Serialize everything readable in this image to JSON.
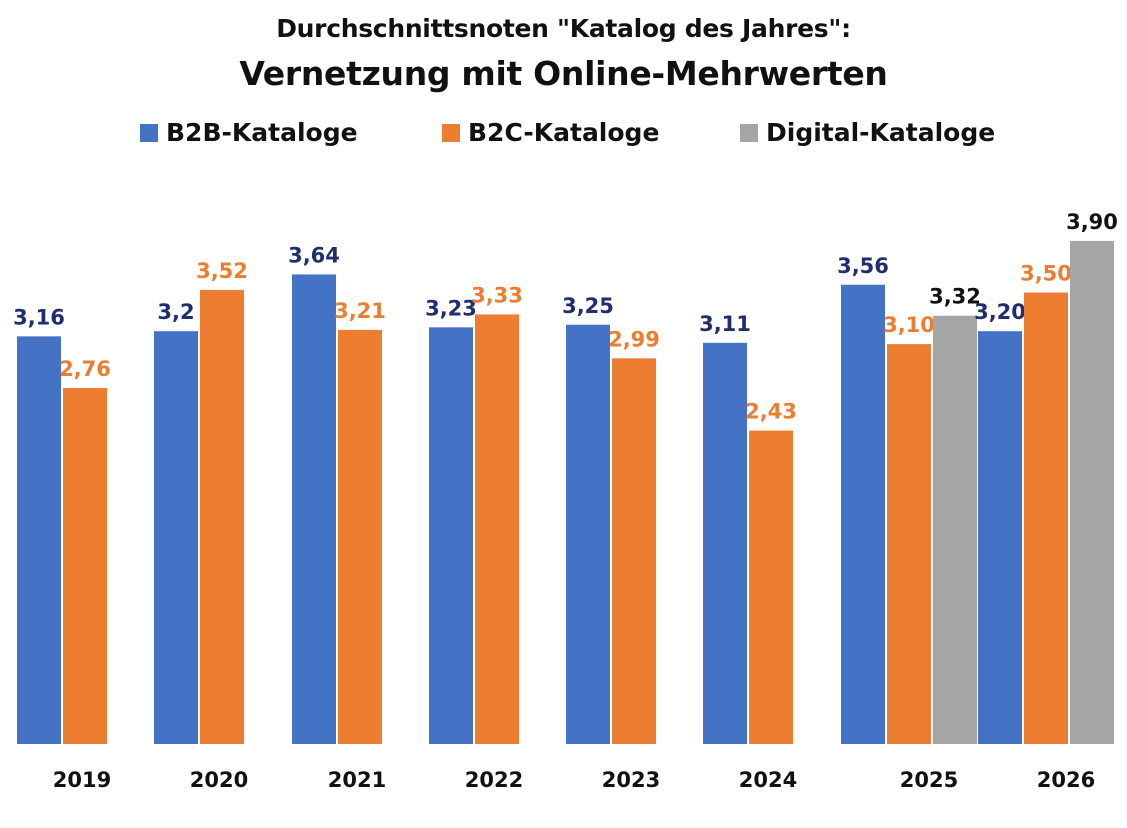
{
  "chart_data": {
    "type": "bar",
    "title": "Vernetzung mit Online-Mehrwerten",
    "subtitle": "Durchschnittsnoten \"Katalog des Jahres\":",
    "legend_position": "top",
    "grid": false,
    "ylim": [
      0,
      4
    ],
    "groups": [
      {
        "category": "2019",
        "bars": [
          {
            "series": "B2B-Kataloge",
            "value": 3.16,
            "label": "3,16"
          },
          {
            "series": "B2C-Kataloge",
            "value": 2.76,
            "label": "2,76"
          }
        ]
      },
      {
        "category": "2020",
        "bars": [
          {
            "series": "B2B-Kataloge",
            "value": 3.2,
            "label": "3,2"
          },
          {
            "series": "B2C-Kataloge",
            "value": 3.52,
            "label": "3,52"
          }
        ]
      },
      {
        "category": "2021",
        "bars": [
          {
            "series": "B2B-Kataloge",
            "value": 3.64,
            "label": "3,64"
          },
          {
            "series": "B2C-Kataloge",
            "value": 3.21,
            "label": "3,21"
          }
        ]
      },
      {
        "category": "2022",
        "bars": [
          {
            "series": "B2B-Kataloge",
            "value": 3.23,
            "label": "3,23"
          },
          {
            "series": "B2C-Kataloge",
            "value": 3.33,
            "label": "3,33"
          }
        ]
      },
      {
        "category": "2023",
        "bars": [
          {
            "series": "B2B-Kataloge",
            "value": 3.25,
            "label": "3,25"
          },
          {
            "series": "B2C-Kataloge",
            "value": 2.99,
            "label": "2,99"
          }
        ]
      },
      {
        "category": "2024",
        "bars": [
          {
            "series": "B2B-Kataloge",
            "value": 3.11,
            "label": "3,11"
          },
          {
            "series": "B2C-Kataloge",
            "value": 2.43,
            "label": "2,43"
          }
        ]
      },
      {
        "category": "2025",
        "bars": [
          {
            "series": "B2B-Kataloge",
            "value": 3.56,
            "label": "3,56"
          },
          {
            "series": "B2C-Kataloge",
            "value": 3.1,
            "label": "3,10"
          },
          {
            "series": "Digital-Kataloge",
            "value": 3.32,
            "label": "3,32"
          }
        ]
      },
      {
        "category": "2026",
        "bars": [
          {
            "series": "B2B-Kataloge",
            "value": 3.2,
            "label": "3,20"
          },
          {
            "series": "B2C-Kataloge",
            "value": 3.5,
            "label": "3,50"
          },
          {
            "series": "Digital-Kataloge",
            "value": 3.9,
            "label": "3,90"
          }
        ]
      }
    ],
    "series": [
      {
        "name": "B2B-Kataloge",
        "color": "#4472C4",
        "label_color": "#1F2E6E"
      },
      {
        "name": "B2C-Kataloge",
        "color": "#ED7D31",
        "label_color": "#ED7D31"
      },
      {
        "name": "Digital-Kataloge",
        "color": "#A5A5A5",
        "label_color": "#111111"
      }
    ]
  }
}
